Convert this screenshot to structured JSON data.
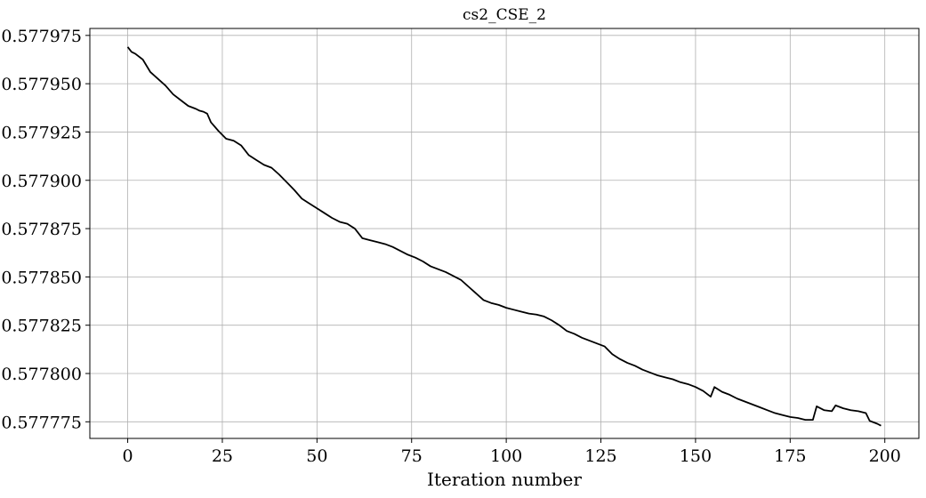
{
  "chart_data": {
    "type": "line",
    "title": "cs2_CSE_2",
    "xlabel": "Iteration number",
    "ylabel": "",
    "xlim": [
      -10,
      209
    ],
    "ylim": [
      0.5777664,
      0.5779786
    ],
    "grid": true,
    "xticks": [
      0,
      25,
      50,
      75,
      100,
      125,
      150,
      175,
      200
    ],
    "xtick_labels": [
      "0",
      "25",
      "50",
      "75",
      "100",
      "125",
      "150",
      "175",
      "200"
    ],
    "yticks": [
      0.577775,
      0.5778,
      0.577825,
      0.57785,
      0.577875,
      0.5779,
      0.577925,
      0.57795,
      0.577975
    ],
    "ytick_labels": [
      "0.577775",
      "0.577800",
      "0.577825",
      "0.577850",
      "0.577875",
      "0.577900",
      "0.577925",
      "0.577950",
      "0.577975"
    ],
    "series": [
      {
        "color": "#000000",
        "points": [
          [
            0,
            0.577969
          ],
          [
            1,
            0.5779665
          ],
          [
            2,
            0.5779655
          ],
          [
            4,
            0.5779625
          ],
          [
            6,
            0.577956
          ],
          [
            8,
            0.5779525
          ],
          [
            10,
            0.577949
          ],
          [
            12,
            0.5779445
          ],
          [
            14,
            0.5779415
          ],
          [
            16,
            0.5779385
          ],
          [
            18,
            0.577937
          ],
          [
            19,
            0.577936
          ],
          [
            20,
            0.5779355
          ],
          [
            21,
            0.5779345
          ],
          [
            22,
            0.57793
          ],
          [
            24,
            0.5779255
          ],
          [
            26,
            0.5779215
          ],
          [
            28,
            0.5779205
          ],
          [
            30,
            0.577918
          ],
          [
            32,
            0.577913
          ],
          [
            34,
            0.5779105
          ],
          [
            36,
            0.577908
          ],
          [
            38,
            0.5779065
          ],
          [
            40,
            0.577903
          ],
          [
            42,
            0.577899
          ],
          [
            44,
            0.577895
          ],
          [
            46,
            0.5778905
          ],
          [
            48,
            0.577888
          ],
          [
            50,
            0.5778855
          ],
          [
            52,
            0.577883
          ],
          [
            54,
            0.5778805
          ],
          [
            56,
            0.5778785
          ],
          [
            58,
            0.5778775
          ],
          [
            60,
            0.577875
          ],
          [
            62,
            0.57787
          ],
          [
            64,
            0.577869
          ],
          [
            66,
            0.577868
          ],
          [
            68,
            0.577867
          ],
          [
            70,
            0.5778655
          ],
          [
            72,
            0.5778635
          ],
          [
            74,
            0.5778615
          ],
          [
            76,
            0.57786
          ],
          [
            78,
            0.577858
          ],
          [
            80,
            0.5778555
          ],
          [
            82,
            0.577854
          ],
          [
            84,
            0.5778525
          ],
          [
            86,
            0.5778505
          ],
          [
            88,
            0.5778485
          ],
          [
            90,
            0.577845
          ],
          [
            92,
            0.5778415
          ],
          [
            94,
            0.577838
          ],
          [
            96,
            0.5778365
          ],
          [
            98,
            0.5778355
          ],
          [
            100,
            0.577834
          ],
          [
            102,
            0.577833
          ],
          [
            104,
            0.577832
          ],
          [
            106,
            0.577831
          ],
          [
            108,
            0.5778305
          ],
          [
            110,
            0.5778295
          ],
          [
            112,
            0.5778275
          ],
          [
            114,
            0.577825
          ],
          [
            116,
            0.577822
          ],
          [
            118,
            0.5778205
          ],
          [
            120,
            0.5778185
          ],
          [
            122,
            0.577817
          ],
          [
            124,
            0.5778155
          ],
          [
            126,
            0.577814
          ],
          [
            128,
            0.57781
          ],
          [
            130,
            0.5778075
          ],
          [
            132,
            0.5778055
          ],
          [
            134,
            0.577804
          ],
          [
            136,
            0.577802
          ],
          [
            138,
            0.5778005
          ],
          [
            140,
            0.577799
          ],
          [
            142,
            0.577798
          ],
          [
            144,
            0.577797
          ],
          [
            146,
            0.5777955
          ],
          [
            148,
            0.5777945
          ],
          [
            150,
            0.577793
          ],
          [
            152,
            0.577791
          ],
          [
            154,
            0.577788
          ],
          [
            155,
            0.577793
          ],
          [
            157,
            0.5777905
          ],
          [
            159,
            0.577789
          ],
          [
            161,
            0.577787
          ],
          [
            163,
            0.5777855
          ],
          [
            165,
            0.577784
          ],
          [
            167,
            0.5777825
          ],
          [
            169,
            0.577781
          ],
          [
            171,
            0.5777795
          ],
          [
            173,
            0.5777785
          ],
          [
            175,
            0.5777775
          ],
          [
            177,
            0.577777
          ],
          [
            179,
            0.577776
          ],
          [
            181,
            0.577776
          ],
          [
            182,
            0.577783
          ],
          [
            184,
            0.577781
          ],
          [
            186,
            0.5777805
          ],
          [
            187,
            0.5777835
          ],
          [
            189,
            0.577782
          ],
          [
            191,
            0.577781
          ],
          [
            193,
            0.5777805
          ],
          [
            195,
            0.5777795
          ],
          [
            196,
            0.5777755
          ],
          [
            198,
            0.577774
          ],
          [
            199,
            0.577773
          ]
        ]
      }
    ]
  }
}
